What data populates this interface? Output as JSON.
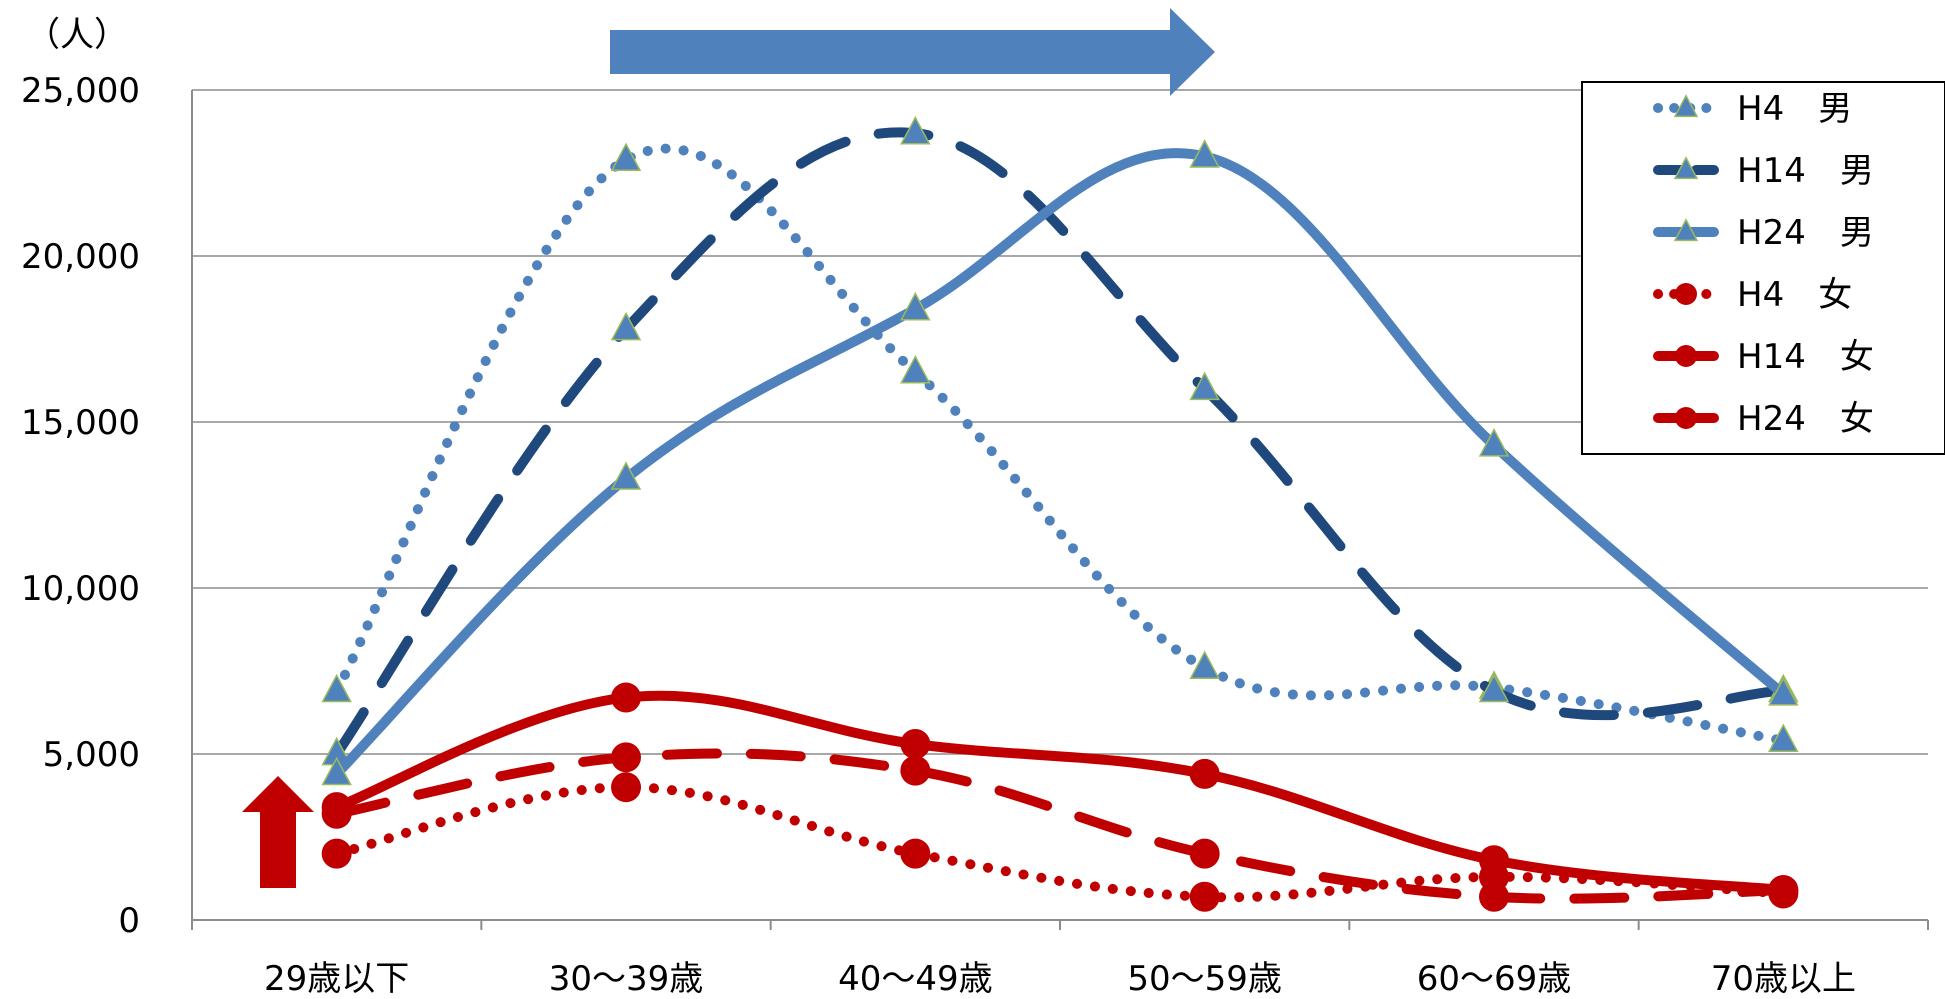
{
  "chart_data": {
    "type": "line",
    "y_unit_label": "（人）",
    "categories": [
      "29歳以下",
      "30～39歳",
      "40～49歳",
      "50～59歳",
      "60～69歳",
      "70歳以上"
    ],
    "ylim": [
      0,
      25000
    ],
    "yticks": [
      0,
      5000,
      10000,
      15000,
      20000,
      25000
    ],
    "ytick_labels": [
      "0",
      "5,000",
      "10,000",
      "15,000",
      "20,000",
      "25,000"
    ],
    "grid": true,
    "legend_position": "top-right",
    "series": [
      {
        "name": "H4　男",
        "values": [
          6900,
          22900,
          16500,
          7600,
          7000,
          5400
        ],
        "color": "#4f81bd",
        "style": "dotted",
        "marker": "triangle"
      },
      {
        "name": "H14　男",
        "values": [
          5000,
          17800,
          23700,
          16000,
          6900,
          6900
        ],
        "color": "#1f497d",
        "style": "dashed",
        "marker": "triangle"
      },
      {
        "name": "H24　男",
        "values": [
          4400,
          13300,
          18400,
          23000,
          14300,
          6800
        ],
        "color": "#4f81bd",
        "style": "solid",
        "marker": "triangle"
      },
      {
        "name": "H4　女",
        "values": [
          2000,
          4000,
          2000,
          700,
          1300,
          800
        ],
        "color": "#c00000",
        "style": "dotted",
        "marker": "circle"
      },
      {
        "name": "H14　女",
        "values": [
          3200,
          4900,
          4500,
          2000,
          700,
          900
        ],
        "color": "#c00000",
        "style": "dashed",
        "marker": "circle"
      },
      {
        "name": "H24　女",
        "values": [
          3400,
          6700,
          5300,
          4400,
          1800,
          900
        ],
        "color": "#c00000",
        "style": "solid",
        "marker": "circle"
      }
    ],
    "annotations": [
      {
        "type": "arrow-right",
        "color": "#4f81bd"
      },
      {
        "type": "arrow-up",
        "color": "#c00000"
      }
    ]
  }
}
